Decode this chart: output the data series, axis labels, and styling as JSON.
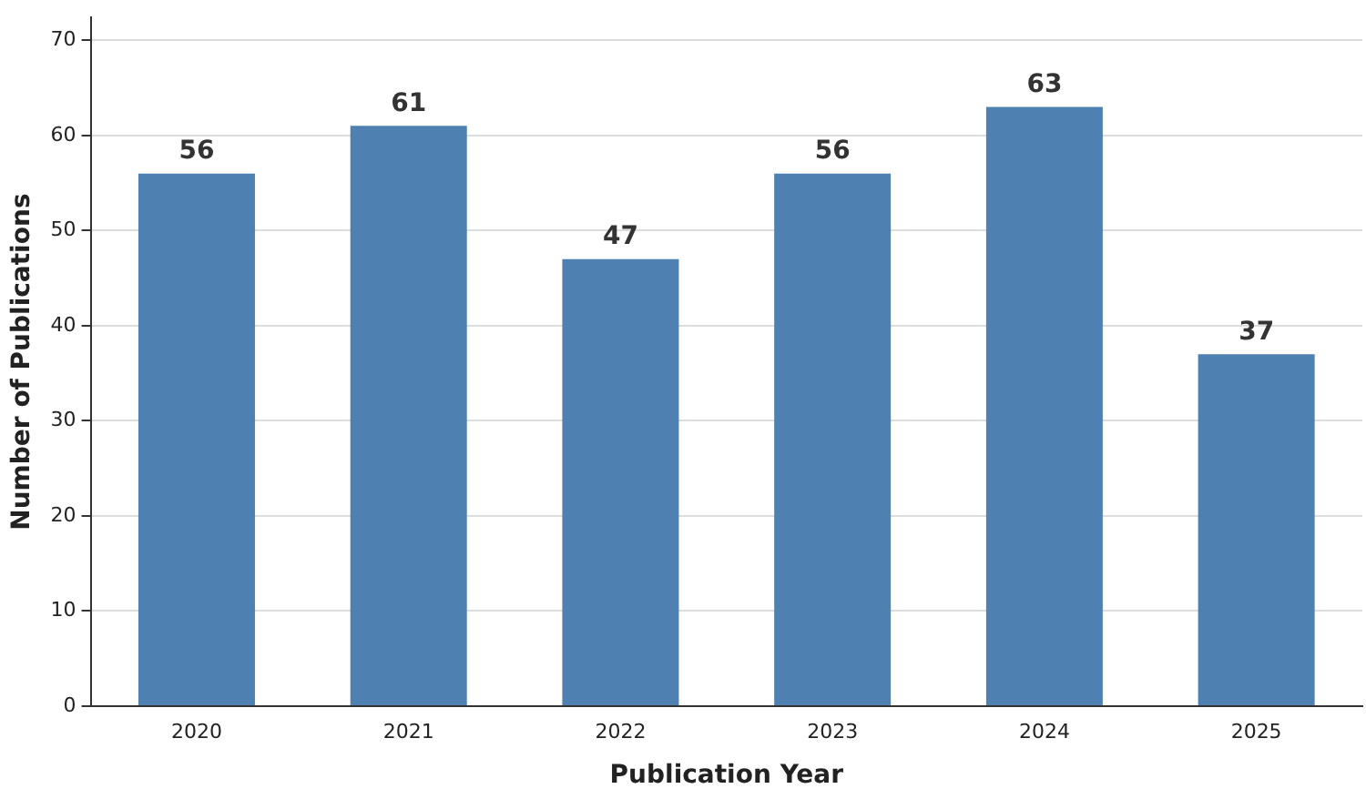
{
  "chart_data": {
    "type": "bar",
    "xlabel": "Publication Year",
    "ylabel": "Number of Publications",
    "categories": [
      "2020",
      "2021",
      "2022",
      "2023",
      "2024",
      "2025"
    ],
    "values": [
      56,
      61,
      47,
      56,
      63,
      37
    ],
    "color": "#4e81b2",
    "ylim": [
      0,
      72.4
    ],
    "yticks": [
      0,
      10,
      20,
      30,
      40,
      50,
      60,
      70
    ],
    "grid": "y",
    "data_labels": true,
    "legend": false
  }
}
